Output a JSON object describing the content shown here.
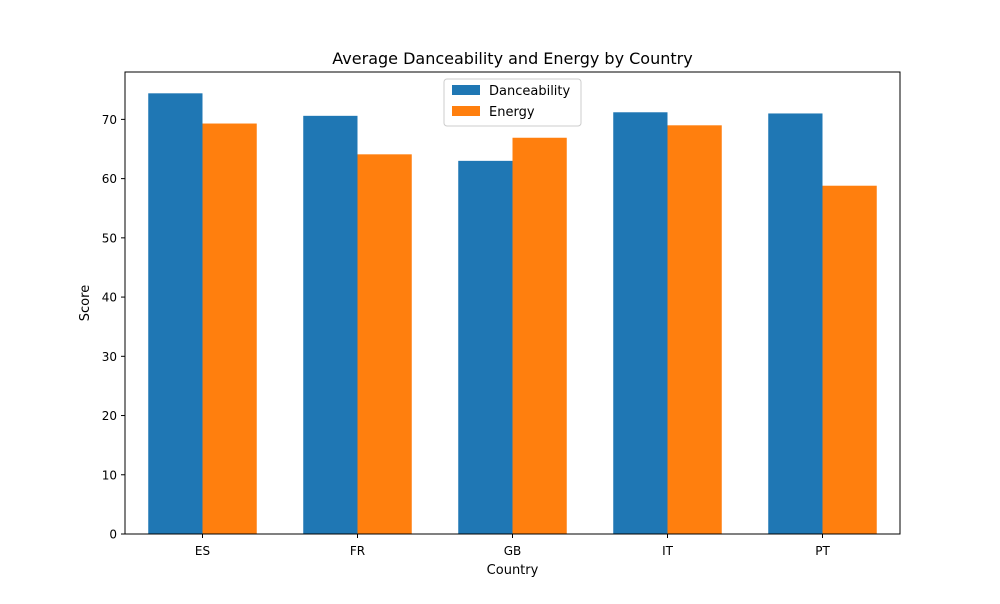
{
  "chart_data": {
    "type": "bar",
    "title": "Average Danceability and Energy by Country",
    "xlabel": "Country",
    "ylabel": "Score",
    "categories": [
      "ES",
      "FR",
      "GB",
      "IT",
      "PT"
    ],
    "series": [
      {
        "name": "Danceability",
        "color": "#1f77b4",
        "values": [
          74.4,
          70.6,
          63.0,
          71.2,
          71.0
        ]
      },
      {
        "name": "Energy",
        "color": "#ff7f0e",
        "values": [
          69.3,
          64.1,
          66.9,
          69.0,
          58.8
        ]
      }
    ],
    "ylim": [
      0,
      78
    ],
    "yticks": [
      0,
      10,
      20,
      30,
      40,
      50,
      60,
      70
    ],
    "grid": false,
    "legend_position": "top-center"
  }
}
